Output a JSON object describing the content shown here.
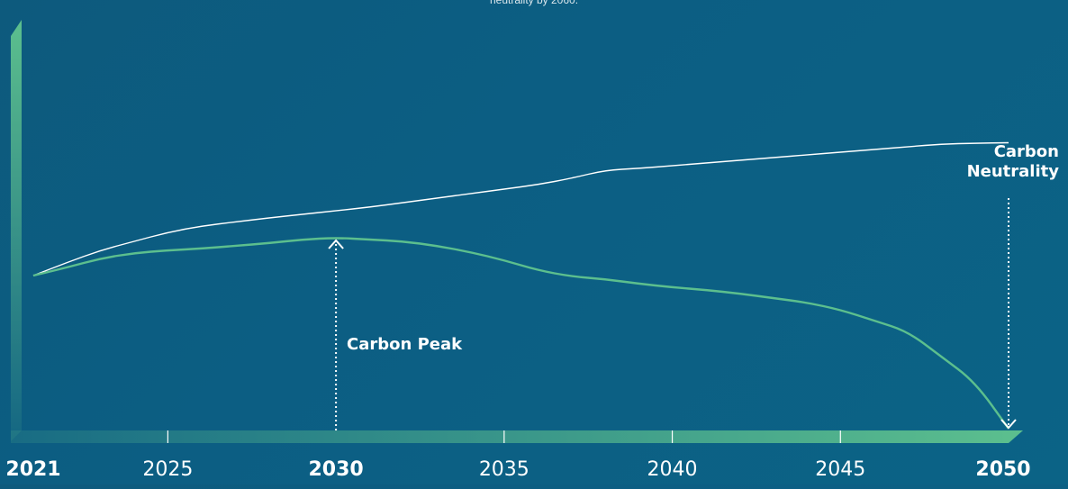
{
  "top_note": "neutrality by 2060.",
  "annotations": {
    "peak": "Carbon Peak",
    "neutrality_line1": "Carbon",
    "neutrality_line2": "Neutrality"
  },
  "colors": {
    "background": "#0c5e83",
    "upper_line": "#ffffff",
    "lower_line": "#5cbf8e",
    "axis": "#5cbf8e"
  },
  "chart_data": {
    "type": "line",
    "title": "",
    "xlabel": "",
    "ylabel": "",
    "xlim": [
      2021,
      2050
    ],
    "x_ticks": [
      {
        "value": 2021,
        "label": "2021",
        "bold": true
      },
      {
        "value": 2025,
        "label": "2025",
        "bold": false
      },
      {
        "value": 2030,
        "label": "2030",
        "bold": true
      },
      {
        "value": 2035,
        "label": "2035",
        "bold": false
      },
      {
        "value": 2040,
        "label": "2040",
        "bold": false
      },
      {
        "value": 2045,
        "label": "2045",
        "bold": false
      },
      {
        "value": 2050,
        "label": "2050",
        "bold": true
      }
    ],
    "series": [
      {
        "color": "#ffffff",
        "points": [
          [
            2021,
            0
          ],
          [
            2022,
            14.5
          ],
          [
            2023,
            28
          ],
          [
            2024,
            38
          ],
          [
            2025,
            48
          ],
          [
            2026,
            55
          ],
          [
            2027,
            59.5
          ],
          [
            2028,
            64
          ],
          [
            2029,
            68
          ],
          [
            2030,
            72
          ],
          [
            2031,
            76
          ],
          [
            2032,
            81
          ],
          [
            2033,
            86
          ],
          [
            2034,
            91
          ],
          [
            2035,
            96
          ],
          [
            2036,
            101
          ],
          [
            2037,
            108
          ],
          [
            2038,
            117
          ],
          [
            2039,
            119
          ],
          [
            2040,
            122
          ],
          [
            2041,
            125
          ],
          [
            2042,
            128
          ],
          [
            2043,
            131
          ],
          [
            2044,
            134
          ],
          [
            2045,
            137
          ],
          [
            2046,
            140
          ],
          [
            2047,
            143
          ],
          [
            2048,
            146
          ],
          [
            2049,
            147
          ],
          [
            2050,
            147.5
          ]
        ]
      },
      {
        "color": "#5cbf8e",
        "points": [
          [
            2021,
            0
          ],
          [
            2022,
            9
          ],
          [
            2023,
            19
          ],
          [
            2024,
            25
          ],
          [
            2025,
            28
          ],
          [
            2026,
            30
          ],
          [
            2027,
            33
          ],
          [
            2028,
            36
          ],
          [
            2029,
            40
          ],
          [
            2030,
            42
          ],
          [
            2031,
            40
          ],
          [
            2032,
            38
          ],
          [
            2033,
            33
          ],
          [
            2034,
            26
          ],
          [
            2035,
            17
          ],
          [
            2036,
            6
          ],
          [
            2037,
            -1
          ],
          [
            2038,
            -4
          ],
          [
            2039,
            -9
          ],
          [
            2040,
            -13
          ],
          [
            2041,
            -16
          ],
          [
            2042,
            -20
          ],
          [
            2043,
            -25
          ],
          [
            2044,
            -30
          ],
          [
            2045,
            -38
          ],
          [
            2046,
            -50
          ],
          [
            2047,
            -62
          ],
          [
            2048,
            -90
          ],
          [
            2049,
            -118
          ],
          [
            2050,
            -170
          ]
        ]
      }
    ],
    "markers": [
      {
        "x": 2030,
        "y": 42,
        "label": "Carbon Peak"
      },
      {
        "x": 2050,
        "y": -170,
        "label": "Carbon Neutrality"
      }
    ]
  }
}
